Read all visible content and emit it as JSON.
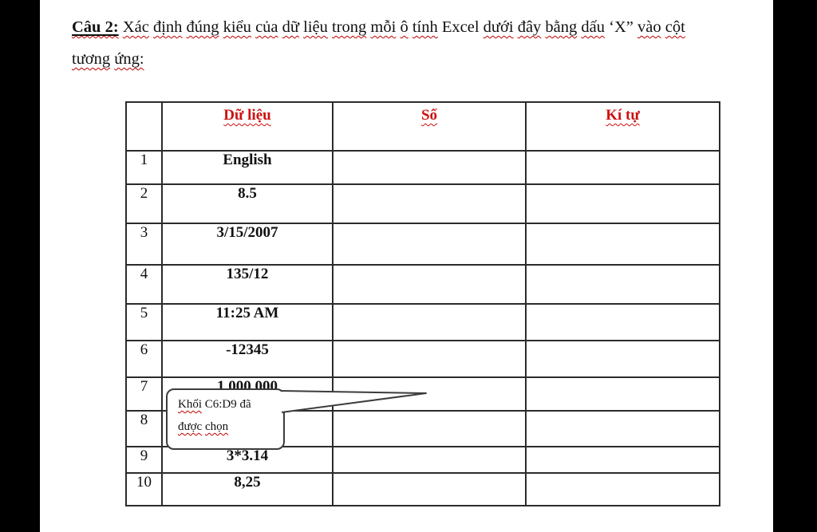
{
  "frame": {
    "left_bar_color": "#000000",
    "right_bar_color": "#000000",
    "page_background": "#ffffff"
  },
  "title": {
    "text_color": "#111111",
    "squiggle_color": "#c00000",
    "line1_segments": [
      {
        "text": "Câu 2:",
        "style": "lead"
      },
      {
        "text": "Xác định đúng kiểu của dữ liệu trong mỗi ô tính",
        "style": "wavy"
      },
      {
        "text": "Excel",
        "style": "plain"
      },
      {
        "text": "dưới đây bằng dấu",
        "style": "wavy"
      },
      {
        "text": "‘X”",
        "style": "plain"
      },
      {
        "text": "vào cột",
        "style": "wavy"
      }
    ],
    "line2_segments": [
      {
        "text": "tương ứng:",
        "style": "wavy"
      }
    ]
  },
  "table": {
    "header_color": "#cc1111",
    "headers": [
      {
        "text": ""
      },
      {
        "text": "Dữ liệu"
      },
      {
        "text": "Số"
      },
      {
        "text": "Kí tự"
      }
    ],
    "rows": [
      {
        "num": "1",
        "value": "English"
      },
      {
        "num": "2",
        "value": "8.5"
      },
      {
        "num": "3",
        "value": "3/15/2007"
      },
      {
        "num": "4",
        "value": "135/12"
      },
      {
        "num": "5",
        "value": "11:25 AM"
      },
      {
        "num": "6",
        "value": "-12345"
      },
      {
        "num": "7",
        "value": "1,000,000"
      },
      {
        "num": "8",
        "value": ""
      },
      {
        "num": "9",
        "value": "3*3.14"
      },
      {
        "num": "10",
        "value": "8,25"
      }
    ]
  },
  "callout": {
    "fill": "#ffffff",
    "border_color": "#3c3c3c",
    "line1_segments": [
      {
        "text": "Khối",
        "style": "wavy"
      },
      {
        "text": "C6:D9 đã",
        "style": "plain"
      }
    ],
    "line2_segments": [
      {
        "text": "được chọn",
        "style": "wavy"
      }
    ]
  }
}
